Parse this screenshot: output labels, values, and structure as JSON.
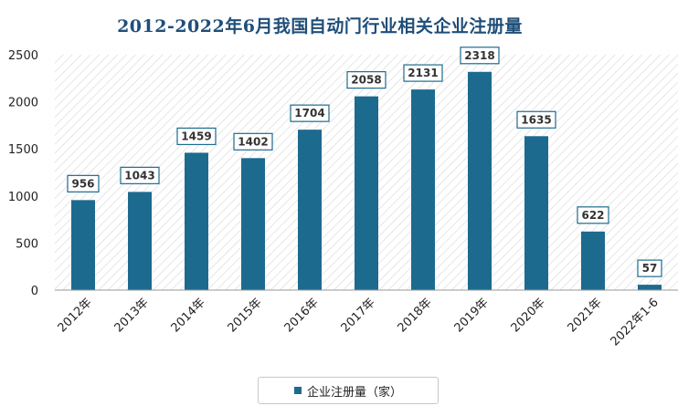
{
  "chart_data": {
    "type": "bar",
    "title": "2012-2022年6月我国自动门行业相关企业注册量",
    "categories": [
      "2012年",
      "2013年",
      "2014年",
      "2015年",
      "2016年",
      "2017年",
      "2018年",
      "2019年",
      "2020年",
      "2021年",
      "2022年1-6"
    ],
    "series": [
      {
        "name": "企业注册量（家）",
        "values": [
          956,
          1043,
          1459,
          1402,
          1704,
          2058,
          2131,
          2318,
          1635,
          622,
          57
        ]
      }
    ],
    "ylim": [
      0,
      2500
    ],
    "yticks": [
      0,
      500,
      1000,
      1500,
      2000,
      2500
    ],
    "grid": false,
    "legend": "bottom",
    "colors": {
      "bar": "#1d6a8f",
      "title": "#1f4e79",
      "label_border": "#1d6a8f"
    }
  }
}
